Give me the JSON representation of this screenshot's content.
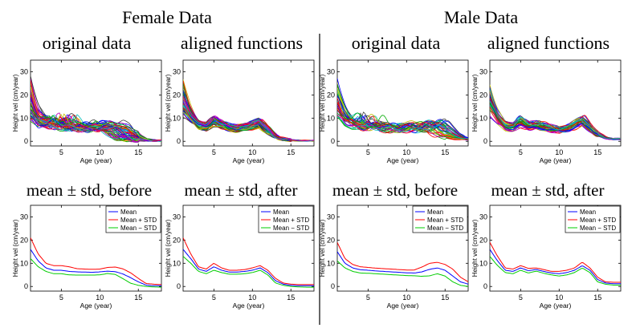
{
  "figure": {
    "groups": [
      {
        "title": "Female Data"
      },
      {
        "title": "Male Data"
      }
    ],
    "row_titles": {
      "top_left": "original data",
      "top_right": "aligned functions",
      "bottom_left": "mean ± std, before",
      "bottom_right": "mean ± std, after"
    }
  },
  "chart_data": [
    {
      "id": "female-original",
      "type": "line",
      "title": "original data",
      "xlabel": "Age (year)",
      "ylabel": "Height vel (cm/year)",
      "xlim": [
        1,
        18
      ],
      "ylim": [
        -2,
        35
      ],
      "xticks": [
        5,
        10,
        15
      ],
      "yticks": [
        0,
        10,
        20,
        30
      ],
      "curve_count": 54,
      "series_colors": [
        "#0000ff",
        "#00aa00",
        "#ff0000",
        "#00bfbf",
        "#bf00bf",
        "#bfbf00",
        "#404040"
      ],
      "spread": "high",
      "representative": {
        "x": [
          1,
          2,
          3,
          4,
          5,
          6,
          7,
          8,
          9,
          10,
          11,
          12,
          13,
          14,
          15,
          16,
          17,
          18
        ],
        "y": [
          16,
          10,
          8,
          7.5,
          7,
          6.5,
          6.2,
          6,
          6,
          6.5,
          7,
          6,
          4,
          2,
          1,
          0.5,
          0.3,
          0.3
        ]
      }
    },
    {
      "id": "female-aligned",
      "type": "line",
      "title": "aligned functions",
      "xlabel": "Age (year)",
      "ylabel": "Height vel (cm/year)",
      "xlim": [
        1,
        18
      ],
      "ylim": [
        -2,
        35
      ],
      "xticks": [
        5,
        10,
        15
      ],
      "yticks": [
        0,
        10,
        20,
        30
      ],
      "curve_count": 54,
      "series_colors": [
        "#0000ff",
        "#00aa00",
        "#ff0000",
        "#00bfbf",
        "#bf00bf",
        "#bfbf00",
        "#404040"
      ],
      "spread": "low",
      "representative": {
        "x": [
          1,
          2,
          3,
          4,
          5,
          6,
          7,
          8,
          9,
          10,
          11,
          12,
          13,
          14,
          15,
          16,
          17,
          18
        ],
        "y": [
          17,
          11,
          7,
          6,
          8,
          7,
          6,
          5.5,
          6,
          7,
          8,
          5,
          2,
          1,
          0.5,
          0.3,
          0.3,
          0.3
        ]
      }
    },
    {
      "id": "male-original",
      "type": "line",
      "title": "original data",
      "xlabel": "Age (year)",
      "ylabel": "Height vel (cm/year)",
      "xlim": [
        1,
        18
      ],
      "ylim": [
        -2,
        35
      ],
      "xticks": [
        5,
        10,
        15
      ],
      "yticks": [
        0,
        10,
        20,
        30
      ],
      "curve_count": 39,
      "series_colors": [
        "#0000ff",
        "#00aa00",
        "#ff0000",
        "#00bfbf",
        "#bf00bf",
        "#bfbf00",
        "#404040"
      ],
      "spread": "high",
      "representative": {
        "x": [
          1,
          2,
          3,
          4,
          5,
          6,
          7,
          8,
          9,
          10,
          11,
          12,
          13,
          14,
          15,
          16,
          17,
          18
        ],
        "y": [
          15,
          9.5,
          7.5,
          7,
          6.5,
          6.2,
          6,
          5.8,
          5.6,
          5.5,
          5.6,
          6,
          7,
          7,
          5,
          3,
          1.5,
          0.8
        ]
      }
    },
    {
      "id": "male-aligned",
      "type": "line",
      "title": "aligned functions",
      "xlabel": "Age (year)",
      "ylabel": "Height vel (cm/year)",
      "xlim": [
        1,
        18
      ],
      "ylim": [
        -2,
        35
      ],
      "xticks": [
        5,
        10,
        15
      ],
      "yticks": [
        0,
        10,
        20,
        30
      ],
      "curve_count": 39,
      "series_colors": [
        "#0000ff",
        "#00aa00",
        "#ff0000",
        "#00bfbf",
        "#bf00bf",
        "#bfbf00",
        "#404040"
      ],
      "spread": "low",
      "representative": {
        "x": [
          1,
          2,
          3,
          4,
          5,
          6,
          7,
          8,
          9,
          10,
          11,
          12,
          13,
          14,
          15,
          16,
          17,
          18
        ],
        "y": [
          16,
          10,
          6.5,
          6,
          7.5,
          6.5,
          7,
          6.5,
          5.5,
          5,
          5.5,
          7,
          9,
          6,
          3,
          1.5,
          1,
          1
        ]
      }
    },
    {
      "id": "female-mean-before",
      "type": "line",
      "title": "mean ± std, before",
      "xlabel": "Age (year)",
      "ylabel": "Height vel (cm/year)",
      "xlim": [
        1,
        18
      ],
      "ylim": [
        -2,
        35
      ],
      "xticks": [
        5,
        10,
        15
      ],
      "yticks": [
        0,
        10,
        20,
        30
      ],
      "x": [
        1,
        2,
        3,
        4,
        5,
        6,
        7,
        8,
        9,
        10,
        11,
        12,
        13,
        14,
        15,
        16,
        17,
        18
      ],
      "series": [
        {
          "name": "Mean",
          "color": "#0000ff",
          "values": [
            16,
            11,
            8,
            7,
            7,
            6.5,
            6.3,
            6.2,
            6.1,
            6.3,
            6.6,
            6.4,
            5.4,
            3.8,
            2,
            0.6,
            0.3,
            0.3
          ]
        },
        {
          "name": "Mean + STD",
          "color": "#ff0000",
          "values": [
            21,
            14,
            10,
            9,
            9,
            8.5,
            7.7,
            7.5,
            7.4,
            7.5,
            8.2,
            8.4,
            7.6,
            5.9,
            3.5,
            1.3,
            1,
            0.8
          ]
        },
        {
          "name": "Mean − STD",
          "color": "#00cc00",
          "values": [
            12,
            8.5,
            6.5,
            5.5,
            5.5,
            5,
            4.9,
            4.9,
            4.9,
            5,
            5.6,
            5.2,
            3.4,
            1.4,
            0.5,
            0,
            -0.2,
            -0.3
          ]
        }
      ],
      "legend": "top-right"
    },
    {
      "id": "female-mean-after",
      "type": "line",
      "title": "mean ± std, after",
      "xlabel": "Age (year)",
      "ylabel": "Height vel (cm/year)",
      "xlim": [
        1,
        18
      ],
      "ylim": [
        -2,
        35
      ],
      "xticks": [
        5,
        10,
        15
      ],
      "yticks": [
        0,
        10,
        20,
        30
      ],
      "x": [
        1,
        2,
        3,
        4,
        5,
        6,
        7,
        8,
        9,
        10,
        11,
        12,
        13,
        14,
        15,
        16,
        17,
        18
      ],
      "series": [
        {
          "name": "Mean",
          "color": "#0000ff",
          "values": [
            16,
            12,
            7.5,
            6.5,
            8.5,
            7,
            6.2,
            6.2,
            6.5,
            7,
            8,
            6,
            2.5,
            1,
            0.5,
            0.3,
            0.3,
            0.3
          ]
        },
        {
          "name": "Mean + STD",
          "color": "#ff0000",
          "values": [
            21,
            14,
            8.5,
            7.5,
            10,
            8,
            7,
            7,
            7.3,
            8,
            9,
            7,
            3.5,
            1.5,
            1,
            0.8,
            0.8,
            0.8
          ]
        },
        {
          "name": "Mean − STD",
          "color": "#00cc00",
          "values": [
            13,
            10,
            6.5,
            5.5,
            7,
            6,
            5.3,
            5.3,
            5.5,
            6,
            7,
            5,
            1.5,
            0.5,
            0,
            -0.2,
            -0.3,
            -0.3
          ]
        }
      ],
      "legend": "top-right"
    },
    {
      "id": "male-mean-before",
      "type": "line",
      "title": "mean ± std, before",
      "xlabel": "Age (year)",
      "ylabel": "Height vel (cm/year)",
      "xlim": [
        1,
        18
      ],
      "ylim": [
        -2,
        35
      ],
      "xticks": [
        5,
        10,
        15
      ],
      "yticks": [
        0,
        10,
        20,
        30
      ],
      "x": [
        1,
        2,
        3,
        4,
        5,
        6,
        7,
        8,
        9,
        10,
        11,
        12,
        13,
        14,
        15,
        16,
        17,
        18
      ],
      "series": [
        {
          "name": "Mean",
          "color": "#0000ff",
          "values": [
            15,
            10,
            8,
            7.2,
            7,
            6.7,
            6.5,
            6.3,
            6.1,
            5.9,
            5.8,
            6.3,
            7.4,
            8,
            7,
            4.5,
            2,
            1
          ]
        },
        {
          "name": "Mean + STD",
          "color": "#ff0000",
          "values": [
            19,
            12,
            9.5,
            8.5,
            8.2,
            7.9,
            7.7,
            7.5,
            7.3,
            7.1,
            7.1,
            8.4,
            10,
            10.4,
            9.5,
            7.5,
            4,
            2
          ]
        },
        {
          "name": "Mean − STD",
          "color": "#00cc00",
          "values": [
            11,
            8,
            6.5,
            5.8,
            5.7,
            5.5,
            5.3,
            5.1,
            4.9,
            4.7,
            4.6,
            4.4,
            4.6,
            5.5,
            4.5,
            2,
            0.5,
            0
          ]
        }
      ],
      "legend": "top-right"
    },
    {
      "id": "male-mean-after",
      "type": "line",
      "title": "mean ± std, after",
      "xlabel": "Age (year)",
      "ylabel": "Height vel (cm/year)",
      "xlim": [
        1,
        18
      ],
      "ylim": [
        -2,
        35
      ],
      "xticks": [
        5,
        10,
        15
      ],
      "yticks": [
        0,
        10,
        20,
        30
      ],
      "x": [
        1,
        2,
        3,
        4,
        5,
        6,
        7,
        8,
        9,
        10,
        11,
        12,
        13,
        14,
        15,
        16,
        17,
        18
      ],
      "series": [
        {
          "name": "Mean",
          "color": "#0000ff",
          "values": [
            16,
            11,
            7,
            6.5,
            8,
            6.8,
            7.3,
            6.5,
            5.8,
            5.5,
            6,
            7,
            9,
            7,
            3,
            1.5,
            1.2,
            1.2
          ]
        },
        {
          "name": "Mean + STD",
          "color": "#ff0000",
          "values": [
            19,
            13,
            8,
            7.5,
            9,
            7.8,
            8,
            7.3,
            6.5,
            6.5,
            7,
            8,
            10.5,
            8,
            4,
            2,
            1.8,
            1.8
          ]
        },
        {
          "name": "Mean − STD",
          "color": "#00cc00",
          "values": [
            13,
            9,
            6,
            5.5,
            7,
            5.8,
            6.6,
            5.7,
            5,
            4.5,
            5,
            6,
            8,
            6,
            2,
            1,
            0.6,
            0.6
          ]
        }
      ],
      "legend": "top-right"
    }
  ]
}
